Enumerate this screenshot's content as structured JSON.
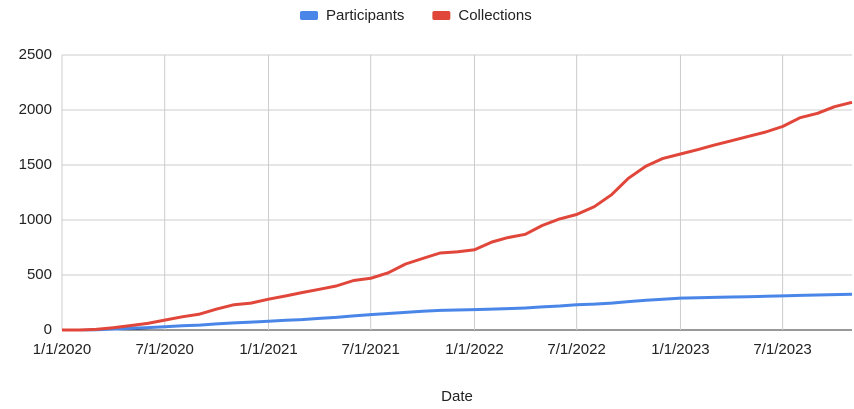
{
  "chart_data": {
    "type": "line",
    "x_label": "Date",
    "x": [
      "1/1/2020",
      "2/1/2020",
      "3/1/2020",
      "4/1/2020",
      "5/1/2020",
      "6/1/2020",
      "7/1/2020",
      "8/1/2020",
      "9/1/2020",
      "10/1/2020",
      "11/1/2020",
      "12/1/2020",
      "1/1/2021",
      "2/1/2021",
      "3/1/2021",
      "4/1/2021",
      "5/1/2021",
      "6/1/2021",
      "7/1/2021",
      "8/1/2021",
      "9/1/2021",
      "10/1/2021",
      "11/1/2021",
      "12/1/2021",
      "1/1/2022",
      "2/1/2022",
      "3/1/2022",
      "4/1/2022",
      "5/1/2022",
      "6/1/2022",
      "7/1/2022",
      "8/1/2022",
      "9/1/2022",
      "10/1/2022",
      "11/1/2022",
      "12/1/2022",
      "1/1/2023",
      "2/1/2023",
      "3/1/2023",
      "4/1/2023",
      "5/1/2023",
      "6/1/2023",
      "7/1/2023",
      "8/1/2023",
      "9/1/2023",
      "10/1/2023",
      "11/1/2023"
    ],
    "series": [
      {
        "name": "Participants",
        "color": "#4a86e8",
        "values": [
          0,
          0,
          3,
          8,
          15,
          22,
          30,
          38,
          45,
          55,
          65,
          72,
          80,
          88,
          95,
          105,
          115,
          128,
          140,
          150,
          160,
          170,
          178,
          182,
          185,
          190,
          195,
          200,
          210,
          218,
          230,
          235,
          245,
          258,
          270,
          280,
          290,
          293,
          296,
          300,
          303,
          306,
          310,
          315,
          318,
          322,
          325
        ]
      },
      {
        "name": "Collections",
        "color": "#e0463a",
        "values": [
          0,
          0,
          5,
          20,
          40,
          60,
          90,
          120,
          145,
          190,
          230,
          245,
          280,
          310,
          340,
          370,
          400,
          450,
          470,
          520,
          600,
          650,
          700,
          710,
          730,
          800,
          840,
          870,
          950,
          1010,
          1050,
          1120,
          1230,
          1380,
          1490,
          1560,
          1600,
          1640,
          1680,
          1720,
          1760,
          1800,
          1850,
          1930,
          1970,
          2030,
          2070
        ]
      }
    ],
    "xlim": [
      "1/1/2020",
      "11/1/2023"
    ],
    "xticks": [
      "1/1/2020",
      "7/1/2020",
      "1/1/2021",
      "7/1/2021",
      "1/1/2022",
      "7/1/2022",
      "1/1/2023",
      "7/1/2023"
    ],
    "ylim": [
      0,
      2500
    ],
    "yticks": [
      0,
      500,
      1000,
      1500,
      2000,
      2500
    ],
    "grid": true,
    "legend": "top"
  }
}
